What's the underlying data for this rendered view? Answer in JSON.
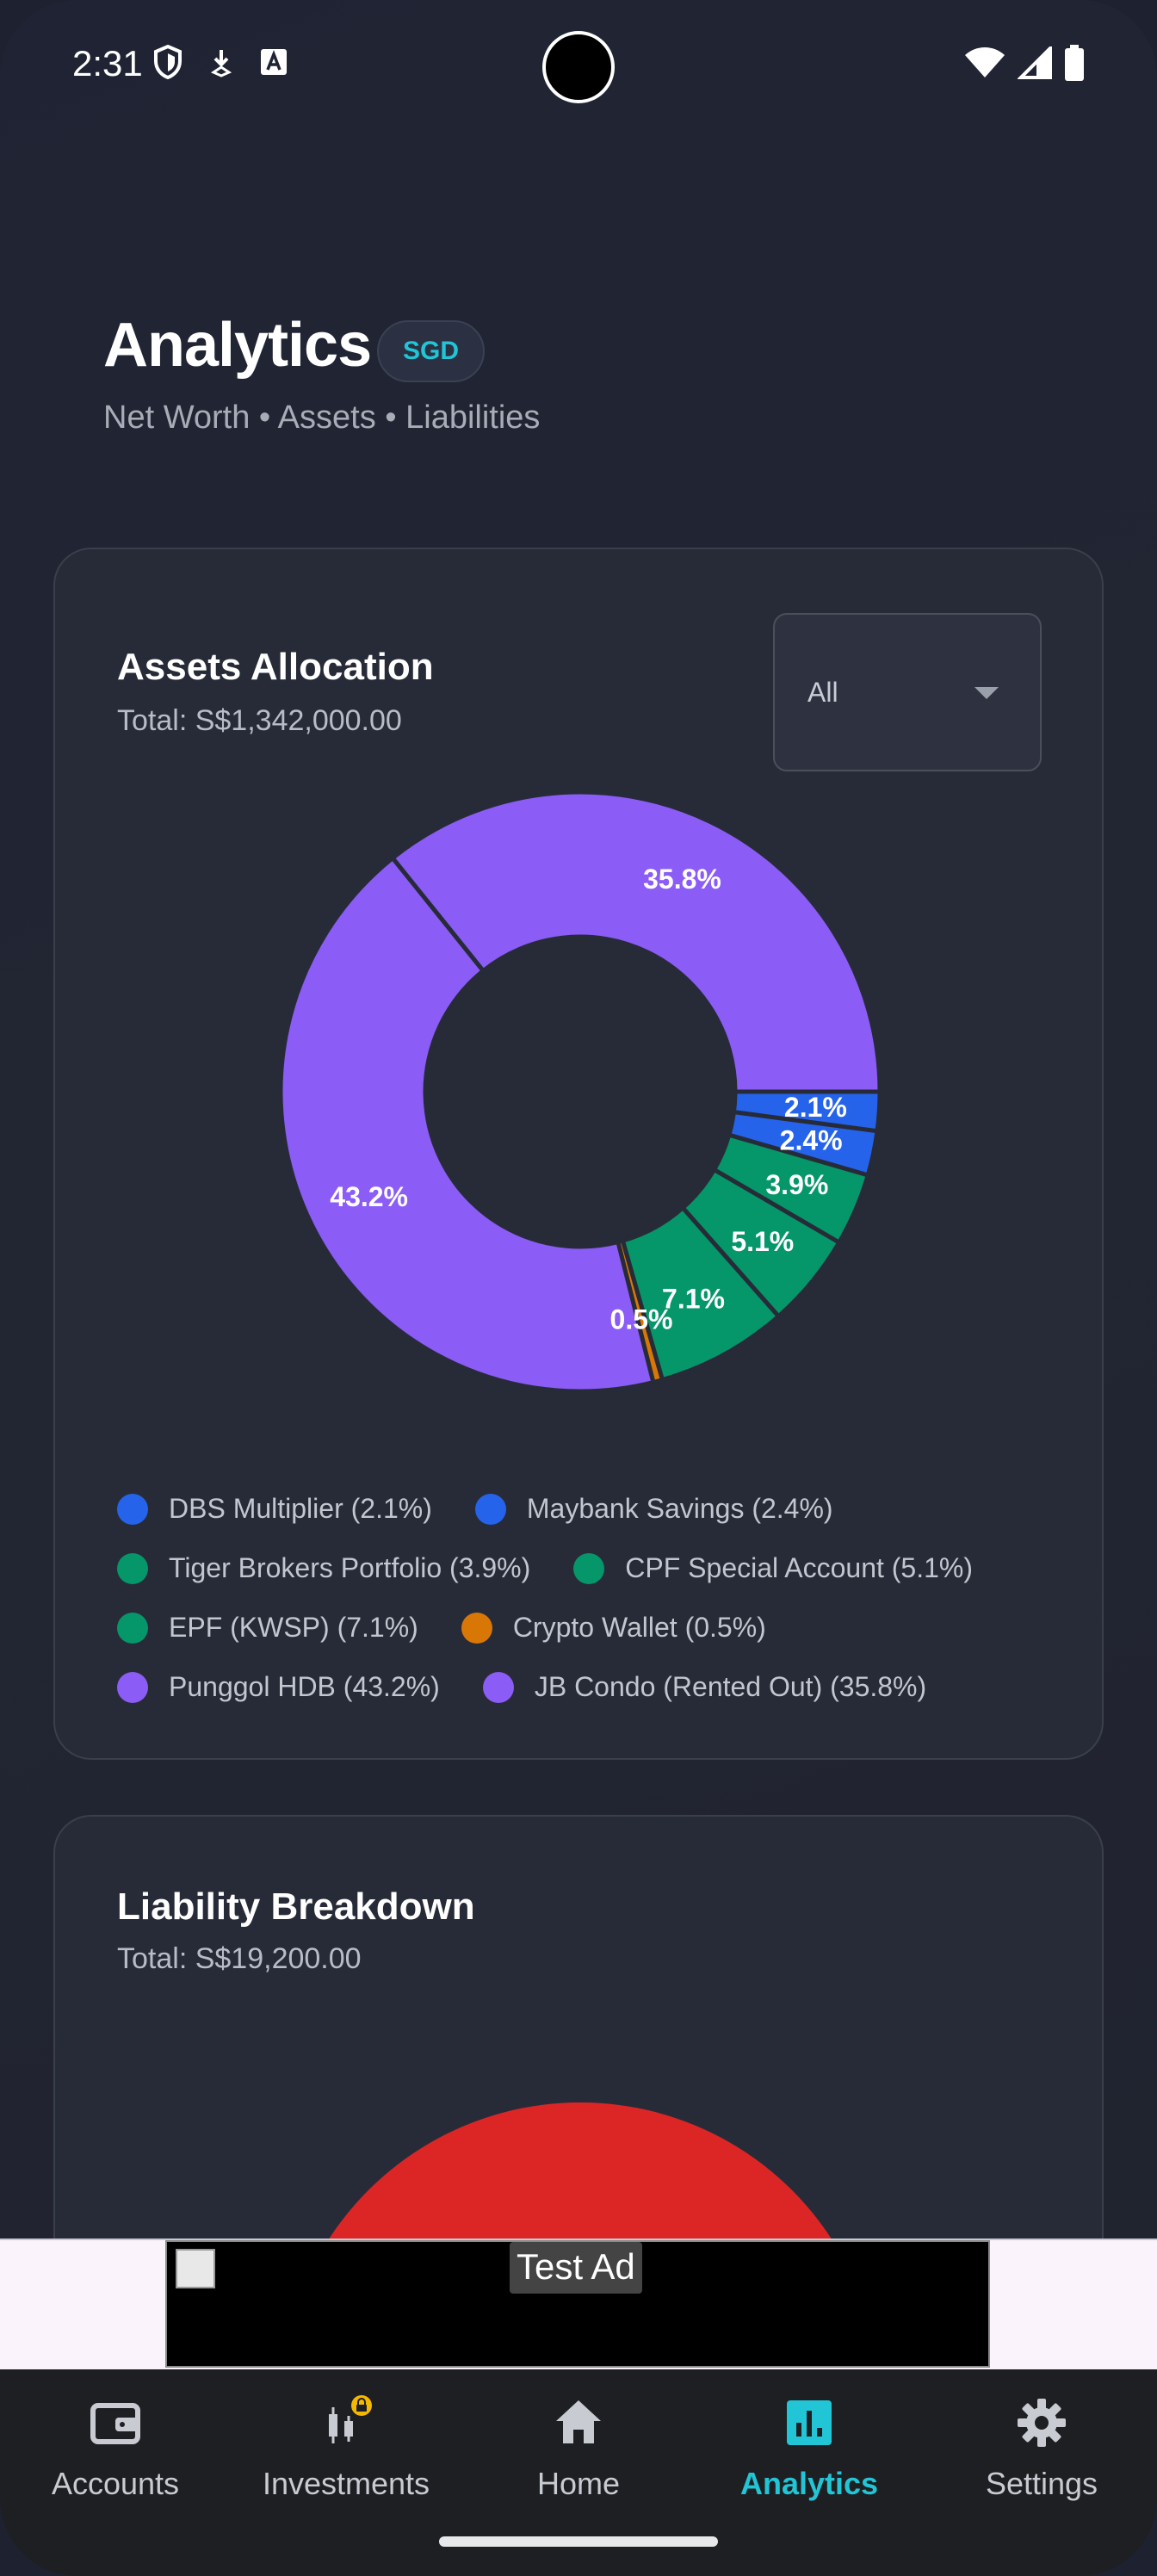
{
  "status_bar": {
    "time": "2:31"
  },
  "header": {
    "title": "Analytics",
    "currency": "SGD",
    "subtitle": "Net Worth • Assets • Liabilities"
  },
  "assets_card": {
    "title": "Assets Allocation",
    "total": "Total: S$1,342,000.00",
    "filter_value": "All"
  },
  "liability_card": {
    "title": "Liability Breakdown",
    "total": "Total: S$19,200.00"
  },
  "chart_data": [
    {
      "type": "pie",
      "subtype": "donut",
      "title": "Assets Allocation",
      "categories": [
        "DBS Multiplier",
        "Maybank Savings",
        "Tiger Brokers Portfolio",
        "CPF Special Account",
        "EPF (KWSP)",
        "Crypto Wallet",
        "Punggol HDB",
        "JB Condo (Rented Out)"
      ],
      "values": [
        2.1,
        2.4,
        3.9,
        5.1,
        7.1,
        0.5,
        43.2,
        35.8
      ],
      "labels": [
        "2.1%",
        "2.4%",
        "3.9%",
        "5.1%",
        "7.1%",
        "0.5%",
        "43.2%",
        "35.8%"
      ],
      "colors": [
        "#2563eb",
        "#2563eb",
        "#059669",
        "#059669",
        "#059669",
        "#d97706",
        "#8b5cf6",
        "#8b5cf6"
      ],
      "legend": [
        [
          "DBS Multiplier (2.1%)",
          "Maybank Savings (2.4%)"
        ],
        [
          "Tiger Brokers Portfolio (3.9%)",
          "CPF Special Account (5.1%)"
        ],
        [
          "EPF (KWSP) (7.1%)",
          "Crypto Wallet (0.5%)"
        ],
        [
          "Punggol HDB (43.2%)",
          "JB Condo (Rented Out) (35.8%)"
        ]
      ]
    },
    {
      "type": "pie",
      "subtype": "donut",
      "title": "Liability Breakdown",
      "values": [
        100
      ],
      "colors": [
        "#dc2626"
      ]
    }
  ],
  "ad": {
    "label": "Test Ad"
  },
  "nav": {
    "items": [
      {
        "label": "Accounts",
        "icon": "wallet-icon"
      },
      {
        "label": "Investments",
        "icon": "candlestick-lock-icon"
      },
      {
        "label": "Home",
        "icon": "home-icon"
      },
      {
        "label": "Analytics",
        "icon": "analytics-icon"
      },
      {
        "label": "Settings",
        "icon": "gear-icon"
      }
    ],
    "active": "Analytics",
    "accent": "#22c5d6"
  }
}
